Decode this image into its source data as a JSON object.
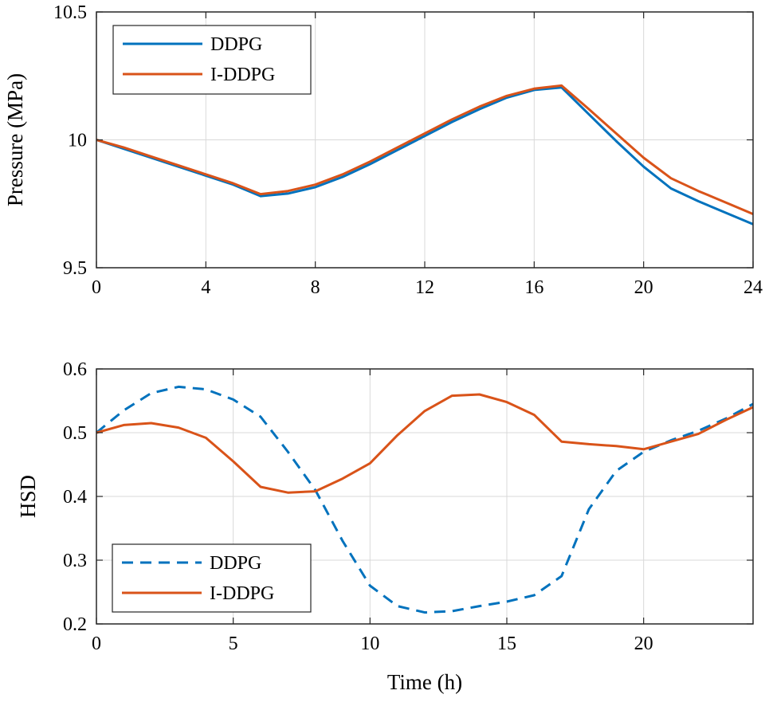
{
  "chart_data": [
    {
      "id": "pressure",
      "type": "line",
      "title": "",
      "xlabel": "",
      "ylabel": "Pressure (MPa)",
      "xlim": [
        0,
        24
      ],
      "ylim": [
        9.5,
        10.5
      ],
      "xticks": [
        0,
        4,
        8,
        12,
        16,
        20,
        24
      ],
      "xtick_labels": [
        "0",
        "4",
        "8",
        "12",
        "16",
        "20",
        "24"
      ],
      "yticks": [
        9.5,
        10,
        10.5
      ],
      "ytick_labels": [
        "9.5",
        "10",
        "10.5"
      ],
      "grid": true,
      "legend_position": "top-left",
      "series": [
        {
          "name": "DDPG",
          "color": "#0072BD",
          "style": "solid",
          "x": [
            0,
            1,
            2,
            3,
            4,
            5,
            6,
            7,
            8,
            9,
            10,
            11,
            12,
            13,
            14,
            15,
            16,
            17,
            18,
            19,
            20,
            21,
            22,
            23,
            24
          ],
          "y": [
            10.0,
            9.965,
            9.93,
            9.895,
            9.86,
            9.825,
            9.78,
            9.79,
            9.815,
            9.855,
            9.905,
            9.96,
            10.015,
            10.07,
            10.12,
            10.165,
            10.195,
            10.205,
            10.1,
            9.995,
            9.895,
            9.81,
            9.76,
            9.715,
            9.67
          ]
        },
        {
          "name": "I-DDPG",
          "color": "#D95319",
          "style": "solid",
          "x": [
            0,
            1,
            2,
            3,
            4,
            5,
            6,
            7,
            8,
            9,
            10,
            11,
            12,
            13,
            14,
            15,
            16,
            17,
            18,
            19,
            20,
            21,
            22,
            23,
            24
          ],
          "y": [
            10.0,
            9.97,
            9.935,
            9.9,
            9.865,
            9.83,
            9.788,
            9.8,
            9.825,
            9.865,
            9.915,
            9.97,
            10.025,
            10.08,
            10.13,
            10.172,
            10.2,
            10.212,
            10.12,
            10.025,
            9.93,
            9.85,
            9.8,
            9.755,
            9.71
          ]
        }
      ]
    },
    {
      "id": "hsd",
      "type": "line",
      "title": "",
      "xlabel": "Time (h)",
      "ylabel": "HSD",
      "xlim": [
        0,
        24
      ],
      "ylim": [
        0.2,
        0.6
      ],
      "xticks": [
        0,
        5,
        10,
        15,
        20
      ],
      "xtick_labels": [
        "0",
        "5",
        "10",
        "15",
        "20"
      ],
      "yticks": [
        0.2,
        0.3,
        0.4,
        0.5,
        0.6
      ],
      "ytick_labels": [
        "0.2",
        "0.3",
        "0.4",
        "0.5",
        "0.6"
      ],
      "grid": true,
      "legend_position": "bottom-left",
      "series": [
        {
          "name": "DDPG",
          "color": "#0072BD",
          "style": "dashed",
          "x": [
            0,
            1,
            2,
            3,
            4,
            5,
            6,
            7,
            8,
            9,
            10,
            11,
            12,
            13,
            14,
            15,
            16,
            17,
            18,
            19,
            20,
            21,
            22,
            23,
            24
          ],
          "y": [
            0.5,
            0.535,
            0.562,
            0.572,
            0.568,
            0.552,
            0.525,
            0.47,
            0.41,
            0.33,
            0.26,
            0.228,
            0.218,
            0.22,
            0.228,
            0.235,
            0.245,
            0.275,
            0.38,
            0.44,
            0.47,
            0.488,
            0.503,
            0.522,
            0.545
          ]
        },
        {
          "name": "I-DDPG",
          "color": "#D95319",
          "style": "solid",
          "x": [
            0,
            1,
            2,
            3,
            4,
            5,
            6,
            7,
            8,
            9,
            10,
            11,
            12,
            13,
            14,
            15,
            16,
            17,
            18,
            19,
            20,
            21,
            22,
            23,
            24
          ],
          "y": [
            0.5,
            0.512,
            0.515,
            0.508,
            0.492,
            0.455,
            0.415,
            0.406,
            0.408,
            0.428,
            0.452,
            0.496,
            0.534,
            0.558,
            0.56,
            0.548,
            0.528,
            0.486,
            0.482,
            0.479,
            0.474,
            0.486,
            0.498,
            0.52,
            0.54
          ]
        }
      ]
    }
  ]
}
